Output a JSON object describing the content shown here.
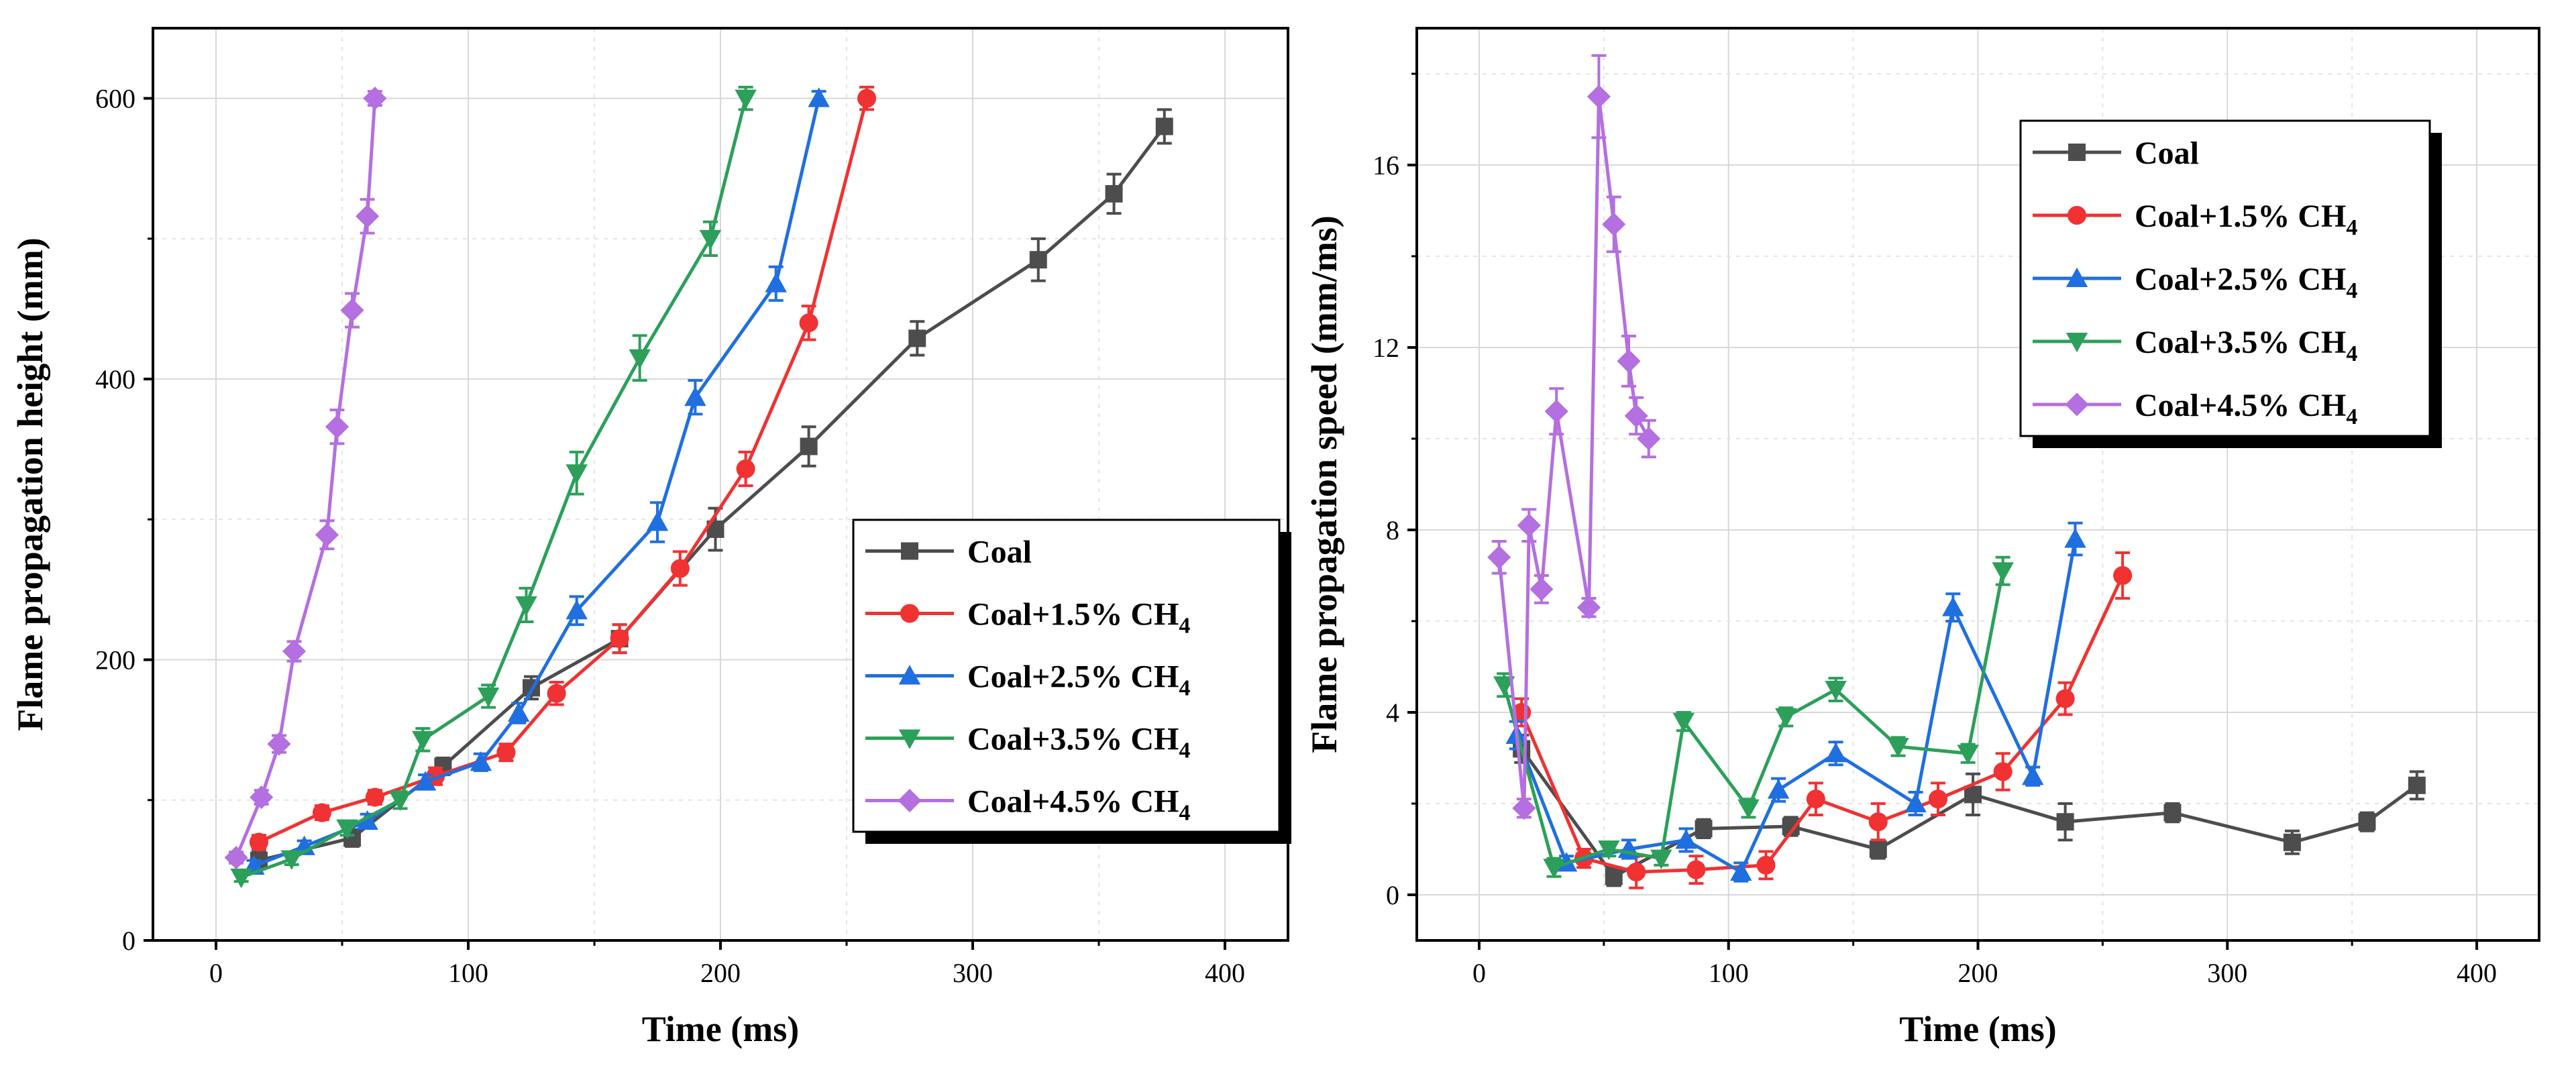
{
  "figure": {
    "colors": {
      "Coal": "#4d4d4d",
      "Coal+1.5% CH4": "#f03232",
      "Coal+2.5% CH4": "#1f6fe0",
      "Coal+3.5% CH4": "#2ca05a",
      "Coal+4.5% CH4": "#b46fe0"
    },
    "markers": {
      "Coal": "square",
      "Coal+1.5% CH4": "circle",
      "Coal+2.5% CH4": "triangle-up",
      "Coal+3.5% CH4": "triangle-down",
      "Coal+4.5% CH4": "diamond"
    }
  },
  "chart_data": [
    {
      "type": "line",
      "title": "",
      "xlabel": "Time (ms)",
      "ylabel": "Flame propagation height (mm)",
      "xlim": [
        -25,
        425
      ],
      "ylim": [
        0,
        650
      ],
      "xticks": [
        0,
        100,
        200,
        300,
        400
      ],
      "yticks": [
        0,
        200,
        400,
        600
      ],
      "xtick_labels": [
        "0",
        "100",
        "200",
        "300",
        "400"
      ],
      "ytick_labels": [
        "0",
        "200",
        "400",
        "600"
      ],
      "grid": true,
      "legend": {
        "position": "center-right",
        "entries": [
          {
            "prefix": "Coal",
            "sub": ""
          },
          {
            "prefix": "Coal+1.5% CH",
            "sub": "4"
          },
          {
            "prefix": "Coal+2.5% CH",
            "sub": "4"
          },
          {
            "prefix": "Coal+3.5% CH",
            "sub": "4"
          },
          {
            "prefix": "Coal+4.5% CH",
            "sub": "4"
          }
        ]
      },
      "series": [
        {
          "name": "Coal",
          "x": [
            17,
            54,
            90,
            125,
            160,
            198,
            235,
            278,
            326,
            356,
            376
          ],
          "y": [
            57,
            73,
            124,
            180,
            215,
            293,
            352,
            429,
            485,
            532,
            580
          ],
          "err": [
            6,
            6,
            6,
            8,
            10,
            15,
            14,
            12,
            15,
            14,
            12
          ]
        },
        {
          "name": "Coal+1.5% CH4",
          "x": [
            17,
            42,
            63,
            87,
            115,
            135,
            160,
            184,
            210,
            235,
            258
          ],
          "y": [
            70,
            91,
            102,
            117,
            134,
            176,
            215,
            265,
            336,
            440,
            600
          ],
          "err": [
            5,
            5,
            5,
            6,
            6,
            8,
            10,
            12,
            12,
            12,
            8
          ]
        },
        {
          "name": "Coal+2.5% CH4",
          "x": [
            15,
            35,
            60,
            83,
            105,
            120,
            143,
            175,
            190,
            222,
            239
          ],
          "y": [
            53,
            67,
            85,
            113,
            127,
            162,
            235,
            298,
            387,
            468,
            600
          ],
          "err": [
            4,
            4,
            5,
            5,
            6,
            7,
            10,
            14,
            12,
            12,
            5
          ]
        },
        {
          "name": "Coal+3.5% CH4",
          "x": [
            10,
            30,
            52,
            73,
            82,
            108,
            123,
            143,
            168,
            196,
            210
          ],
          "y": [
            45,
            58,
            80,
            100,
            143,
            174,
            239,
            333,
            415,
            500,
            600
          ],
          "err": [
            3,
            4,
            5,
            6,
            8,
            8,
            12,
            15,
            16,
            12,
            8
          ]
        },
        {
          "name": "Coal+4.5% CH4",
          "x": [
            8,
            18,
            25,
            31,
            44,
            48,
            54,
            60,
            63
          ],
          "y": [
            59,
            102,
            140,
            206,
            289,
            366,
            449,
            516,
            600
          ],
          "err": [
            4,
            5,
            6,
            7,
            10,
            12,
            12,
            12,
            5
          ]
        }
      ]
    },
    {
      "type": "line",
      "title": "",
      "xlabel": "Time (ms)",
      "ylabel": "Flame propagation speed (mm/ms)",
      "xlim": [
        -25,
        425
      ],
      "ylim": [
        -1,
        19
      ],
      "xticks": [
        0,
        100,
        200,
        300,
        400
      ],
      "yticks": [
        0,
        4,
        8,
        12,
        16
      ],
      "xtick_labels": [
        "0",
        "100",
        "200",
        "300",
        "400"
      ],
      "ytick_labels": [
        "0",
        "4",
        "8",
        "12",
        "16"
      ],
      "grid": true,
      "legend": {
        "position": "top-right",
        "entries": [
          {
            "prefix": "Coal",
            "sub": ""
          },
          {
            "prefix": "Coal+1.5% CH",
            "sub": "4"
          },
          {
            "prefix": "Coal+2.5% CH",
            "sub": "4"
          },
          {
            "prefix": "Coal+3.5% CH",
            "sub": "4"
          },
          {
            "prefix": "Coal+4.5% CH",
            "sub": "4"
          }
        ]
      },
      "series": [
        {
          "name": "Coal",
          "x": [
            17,
            54,
            90,
            125,
            160,
            198,
            235,
            278,
            326,
            356,
            376
          ],
          "y": [
            3.2,
            0.4,
            1.45,
            1.5,
            1.0,
            2.2,
            1.6,
            1.8,
            1.15,
            1.6,
            2.4
          ],
          "err": [
            0.3,
            0.2,
            0.2,
            0.2,
            0.2,
            0.45,
            0.4,
            0.2,
            0.25,
            0.2,
            0.3
          ]
        },
        {
          "name": "Coal+1.5% CH4",
          "x": [
            17,
            42,
            63,
            87,
            115,
            135,
            160,
            184,
            210,
            235,
            258
          ],
          "y": [
            4.0,
            0.8,
            0.5,
            0.55,
            0.65,
            2.1,
            1.6,
            2.1,
            2.7,
            4.3,
            7.0
          ],
          "err": [
            0.3,
            0.2,
            0.35,
            0.3,
            0.3,
            0.35,
            0.4,
            0.35,
            0.4,
            0.35,
            0.5
          ]
        },
        {
          "name": "Coal+2.5% CH4",
          "x": [
            15,
            35,
            60,
            83,
            105,
            120,
            143,
            175,
            190,
            222,
            239
          ],
          "y": [
            3.5,
            0.7,
            1.0,
            1.2,
            0.5,
            2.3,
            3.1,
            2.0,
            6.3,
            2.6,
            7.8
          ],
          "err": [
            0.3,
            0.15,
            0.2,
            0.25,
            0.2,
            0.25,
            0.25,
            0.25,
            0.3,
            0.2,
            0.35
          ]
        },
        {
          "name": "Coal+3.5% CH4",
          "x": [
            10,
            30,
            52,
            73,
            82,
            108,
            123,
            143,
            168,
            196,
            210
          ],
          "y": [
            4.6,
            0.6,
            1.0,
            0.8,
            3.8,
            1.9,
            3.9,
            4.5,
            3.25,
            3.1,
            7.1
          ],
          "err": [
            0.25,
            0.2,
            0.15,
            0.15,
            0.2,
            0.2,
            0.2,
            0.25,
            0.2,
            0.2,
            0.3
          ]
        },
        {
          "name": "Coal+4.5% CH4",
          "x": [
            8,
            18,
            20,
            25,
            31,
            44,
            48,
            54,
            60,
            63,
            68
          ],
          "y": [
            7.4,
            1.9,
            8.1,
            6.7,
            10.6,
            6.3,
            17.5,
            14.7,
            11.7,
            10.5,
            10.0
          ],
          "err": [
            0.35,
            0.2,
            0.35,
            0.3,
            0.5,
            0.2,
            0.9,
            0.6,
            0.55,
            0.4,
            0.4
          ]
        }
      ]
    }
  ]
}
